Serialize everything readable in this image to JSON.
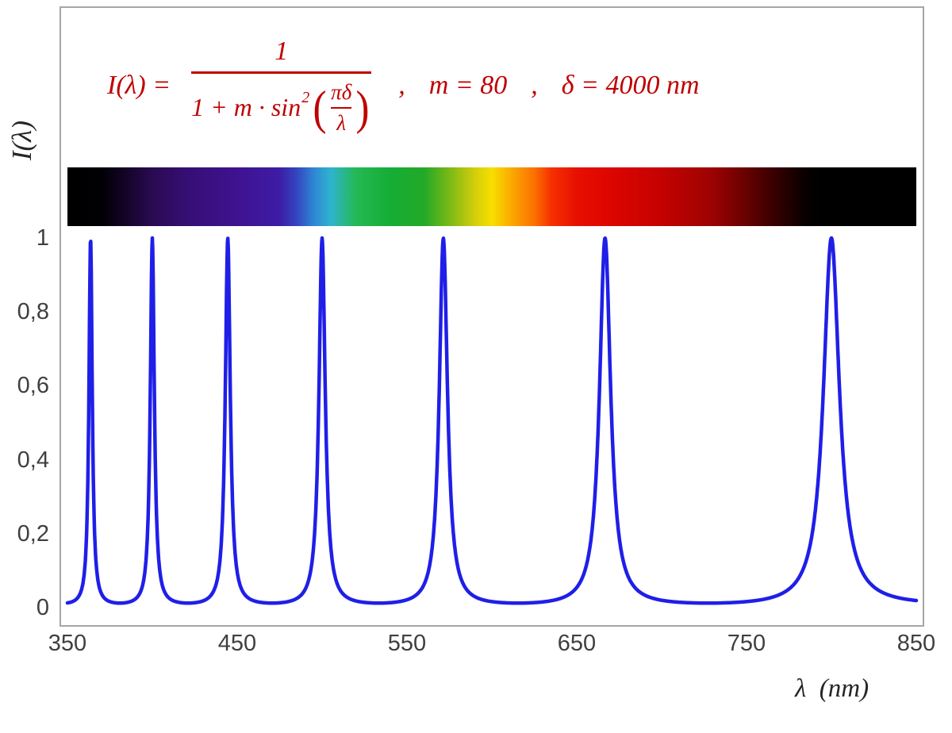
{
  "formula": {
    "lhs": "I(λ) =",
    "numerator": "1",
    "den_prefix": "1 + m · sin",
    "den_exponent": "2",
    "lparen": "(",
    "inner_numerator": "πδ",
    "inner_denominator": "λ",
    "rparen": ")",
    "comma1": ",",
    "param_m": "m = 80",
    "comma2": ",",
    "param_delta": "δ = 4000 nm",
    "color": "#c00000"
  },
  "axes": {
    "y_title": "I(λ)",
    "x_title": "λ  (nm)"
  },
  "chart_data": {
    "type": "line",
    "title": "",
    "xlabel": "λ (nm)",
    "ylabel": "I(λ)",
    "function": "I(lambda) = 1 / (1 + m * sin^2(pi * delta / lambda))",
    "params": {
      "m": 80,
      "delta_nm": 4000
    },
    "x_range_nm": [
      350,
      850
    ],
    "ylim": [
      0,
      1
    ],
    "grid": false,
    "curve_color": "#1f1fe8",
    "tick_color": "#3f3f3f",
    "frame_color": "#a6a6a6",
    "x_ticks": [
      {
        "v": 350,
        "label": "350"
      },
      {
        "v": 450,
        "label": "450"
      },
      {
        "v": 550,
        "label": "550"
      },
      {
        "v": 650,
        "label": "650"
      },
      {
        "v": 750,
        "label": "750"
      },
      {
        "v": 850,
        "label": "850"
      }
    ],
    "y_ticks": [
      {
        "v": 0,
        "label": "0"
      },
      {
        "v": 0.2,
        "label": "0,2"
      },
      {
        "v": 0.4,
        "label": "0,4"
      },
      {
        "v": 0.6,
        "label": "0,6"
      },
      {
        "v": 0.8,
        "label": "0,8"
      },
      {
        "v": 1,
        "label": "1"
      }
    ],
    "peak_wavelengths_nm": [
      363.6,
      400.0,
      444.4,
      500.0,
      571.4,
      666.7,
      800.0
    ],
    "peak_intensity": 1,
    "min_intensity": 0.0123,
    "spectrum_stops": [
      {
        "offset": 0,
        "color": "#000000"
      },
      {
        "offset": 4,
        "color": "#010004"
      },
      {
        "offset": 7,
        "color": "#15042a"
      },
      {
        "offset": 10,
        "color": "#2a0a52"
      },
      {
        "offset": 14,
        "color": "#360e74"
      },
      {
        "offset": 20,
        "color": "#3f1290"
      },
      {
        "offset": 25,
        "color": "#3d1ca6"
      },
      {
        "offset": 27,
        "color": "#3345c0"
      },
      {
        "offset": 29,
        "color": "#2f86d4"
      },
      {
        "offset": 31,
        "color": "#2fb3cf"
      },
      {
        "offset": 34,
        "color": "#25b954"
      },
      {
        "offset": 38,
        "color": "#14ad35"
      },
      {
        "offset": 42,
        "color": "#23a928"
      },
      {
        "offset": 45,
        "color": "#7ab916"
      },
      {
        "offset": 48,
        "color": "#d3ce0a"
      },
      {
        "offset": 50,
        "color": "#f7df00"
      },
      {
        "offset": 52,
        "color": "#fbb000"
      },
      {
        "offset": 55,
        "color": "#fb7100"
      },
      {
        "offset": 57,
        "color": "#f63000"
      },
      {
        "offset": 60,
        "color": "#e80f00"
      },
      {
        "offset": 64,
        "color": "#dc0500"
      },
      {
        "offset": 70,
        "color": "#c40200"
      },
      {
        "offset": 76,
        "color": "#9c0202"
      },
      {
        "offset": 80,
        "color": "#660101"
      },
      {
        "offset": 84,
        "color": "#2e0000"
      },
      {
        "offset": 87,
        "color": "#070000"
      },
      {
        "offset": 89,
        "color": "#000000"
      },
      {
        "offset": 100,
        "color": "#000000"
      }
    ]
  }
}
